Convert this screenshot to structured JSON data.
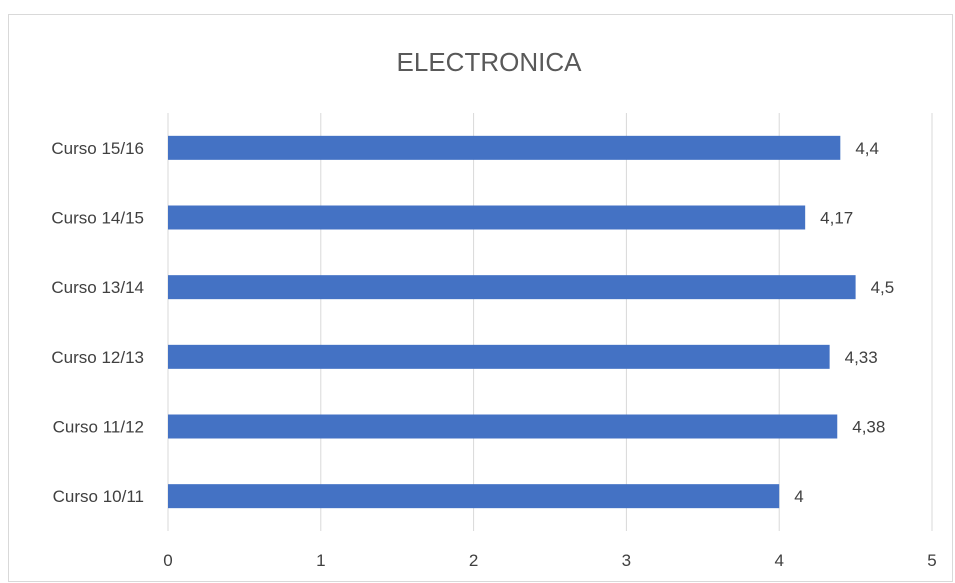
{
  "chart_data": {
    "type": "bar",
    "orientation": "horizontal",
    "title": "ELECTRONICA",
    "xlabel": "",
    "ylabel": "",
    "categories": [
      "Curso 10/11",
      "Curso 11/12",
      "Curso 12/13",
      "Curso 13/14",
      "Curso 14/15",
      "Curso 15/16"
    ],
    "values": [
      4,
      4.38,
      4.33,
      4.5,
      4.17,
      4.4
    ],
    "value_labels": [
      "4",
      "4,38",
      "4,33",
      "4,5",
      "4,17",
      "4,4"
    ],
    "xlim": [
      0,
      5
    ],
    "xticks": [
      0,
      1,
      2,
      3,
      4,
      5
    ],
    "xtick_labels": [
      "0",
      "1",
      "2",
      "3",
      "4",
      "5"
    ],
    "grid": "vertical",
    "legend": "none",
    "bar_color": "#4472C4"
  }
}
